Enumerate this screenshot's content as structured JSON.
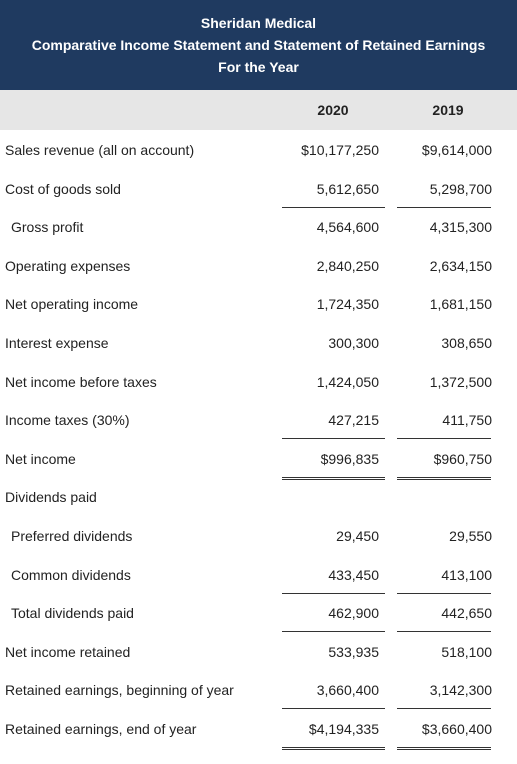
{
  "header": {
    "lines": [
      "Sheridan Medical",
      "Comparative Income Statement and Statement of Retained Earnings",
      "For the Year"
    ]
  },
  "table": {
    "columns": [
      "2020",
      "2019"
    ],
    "rows": [
      [
        "Sales revenue (all on account)",
        "$10,177,250",
        "$9,614,000"
      ],
      [
        "Cost of goods sold",
        "5,612,650",
        "5,298,700"
      ],
      [
        "Gross profit",
        "4,564,600",
        "4,315,300"
      ],
      [
        "Operating expenses",
        "2,840,250",
        "2,634,150"
      ],
      [
        "Net operating income",
        "1,724,350",
        "1,681,150"
      ],
      [
        "Interest expense",
        "300,300",
        "308,650"
      ],
      [
        "Net income before taxes",
        "1,424,050",
        "1,372,500"
      ],
      [
        "Income taxes (30%)",
        "427,215",
        "411,750"
      ],
      [
        "Net income",
        "$996,835",
        "$960,750"
      ],
      [
        "Dividends paid"
      ],
      [
        "Preferred dividends",
        "29,450",
        "29,550"
      ],
      [
        "Common dividends",
        "433,450",
        "413,100"
      ],
      [
        "Total dividends paid",
        "462,900",
        "442,650"
      ],
      [
        "Net income retained",
        "533,935",
        "518,100"
      ],
      [
        "Retained earnings, beginning of year",
        "3,660,400",
        "3,142,300"
      ],
      [
        "Retained earnings, end of year",
        "$4,194,335",
        "$3,660,400"
      ]
    ]
  }
}
